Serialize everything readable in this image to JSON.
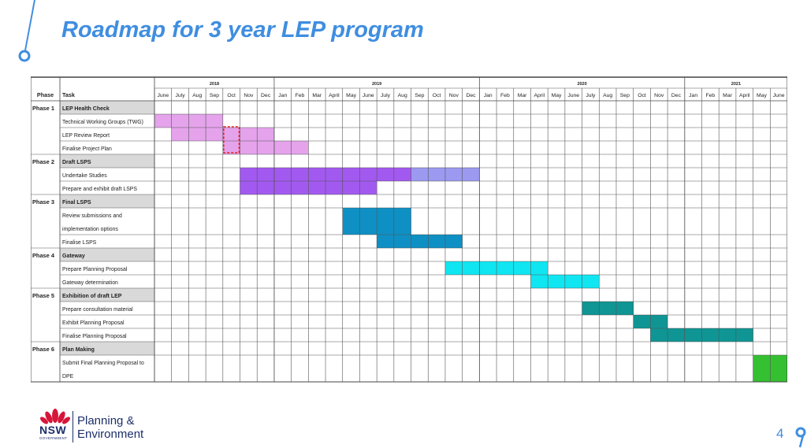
{
  "slide": {
    "title": "Roadmap for 3 year LEP program",
    "page_number": "4",
    "accent_color": "#3f8ee0"
  },
  "logo": {
    "nsw": "NSW",
    "government": "GOVERNMENT",
    "line1": "Planning &",
    "line2": "Environment"
  },
  "gantt": {
    "header": {
      "phase": "Phase",
      "task": "Task"
    },
    "years": [
      {
        "label": "2018",
        "span": 7
      },
      {
        "label": "2019",
        "span": 12
      },
      {
        "label": "2020",
        "span": 12
      },
      {
        "label": "2021",
        "span": 6
      }
    ],
    "months": [
      "June",
      "July",
      "Aug",
      "Sep",
      "Oct",
      "Nov",
      "Dec",
      "Jan",
      "Feb",
      "Mar",
      "April",
      "May",
      "June",
      "July",
      "Aug",
      "Sep",
      "Oct",
      "Nov",
      "Dec",
      "Jan",
      "Feb",
      "Mar",
      "April",
      "May",
      "June",
      "July",
      "Aug",
      "Sep",
      "Oct",
      "Nov",
      "Dec",
      "Jan",
      "Feb",
      "Mar",
      "April",
      "May",
      "June"
    ],
    "rows": [
      {
        "type": "phase",
        "phase": "Phase 1",
        "task": "LEP Health Check"
      },
      {
        "type": "task",
        "task_lines": [
          "Technical Working Groups (TWG)"
        ],
        "bar": {
          "start": 0,
          "end": 3,
          "color": "#e5a3ec"
        }
      },
      {
        "type": "task",
        "task_lines": [
          "LEP Review Report"
        ],
        "bar": {
          "start": 1,
          "end": 6,
          "color": "#e5a3ec"
        },
        "highlight_month": 4
      },
      {
        "type": "task",
        "task_lines": [
          "Finalise  Project Plan"
        ],
        "bar": {
          "start": 4,
          "end": 8,
          "color": "#e5a3ec"
        }
      },
      {
        "type": "phase",
        "phase": "Phase 2",
        "task": "Draft LSPS"
      },
      {
        "type": "task",
        "task_lines": [
          "Undertake Studies"
        ],
        "bar": {
          "start": 5,
          "end": 14,
          "color": "#a259f0"
        },
        "bar2": {
          "start": 15,
          "end": 18,
          "color": "#9b99f0"
        }
      },
      {
        "type": "task",
        "task_lines": [
          "Prepare and exhibit draft LSPS"
        ],
        "bar": {
          "start": 5,
          "end": 12,
          "color": "#a259f0"
        }
      },
      {
        "type": "phase",
        "phase": "Phase 3",
        "task": "Final LSPS"
      },
      {
        "type": "task",
        "task_lines": [
          "Review submissions and",
          "implementation options"
        ],
        "bar": {
          "start": 11,
          "end": 14,
          "color": "#0e90c4"
        }
      },
      {
        "type": "task",
        "task_lines": [
          "Finalise LSPS"
        ],
        "bar": {
          "start": 13,
          "end": 17,
          "color": "#0e90c4"
        }
      },
      {
        "type": "phase",
        "phase": "Phase 4",
        "task": "Gateway"
      },
      {
        "type": "task",
        "task_lines": [
          "Prepare Planning Proposal"
        ],
        "bar": {
          "start": 17,
          "end": 22,
          "color": "#10e6f2"
        }
      },
      {
        "type": "task",
        "task_lines": [
          "Gateway determination"
        ],
        "bar": {
          "start": 22,
          "end": 25,
          "color": "#10e6f2"
        }
      },
      {
        "type": "phase",
        "phase": "Phase 5",
        "task": "Exhibition of draft LEP"
      },
      {
        "type": "task",
        "task_lines": [
          "Prepare consultation material"
        ],
        "bar": {
          "start": 25,
          "end": 27,
          "color": "#0f9594"
        }
      },
      {
        "type": "task",
        "task_lines": [
          "Exhibit Planning Proposal"
        ],
        "bar": {
          "start": 28,
          "end": 29,
          "color": "#0f9594"
        }
      },
      {
        "type": "task",
        "task_lines": [
          "Finalise Planning Proposal"
        ],
        "bar": {
          "start": 29,
          "end": 34,
          "color": "#0f9594"
        }
      },
      {
        "type": "phase",
        "phase": "Phase 6",
        "task": "Plan Making"
      },
      {
        "type": "task",
        "task_lines": [
          "Submit Final Planning Proposal to",
          "DPE"
        ],
        "bar": {
          "start": 35,
          "end": 36,
          "color": "#34c030"
        }
      }
    ]
  }
}
